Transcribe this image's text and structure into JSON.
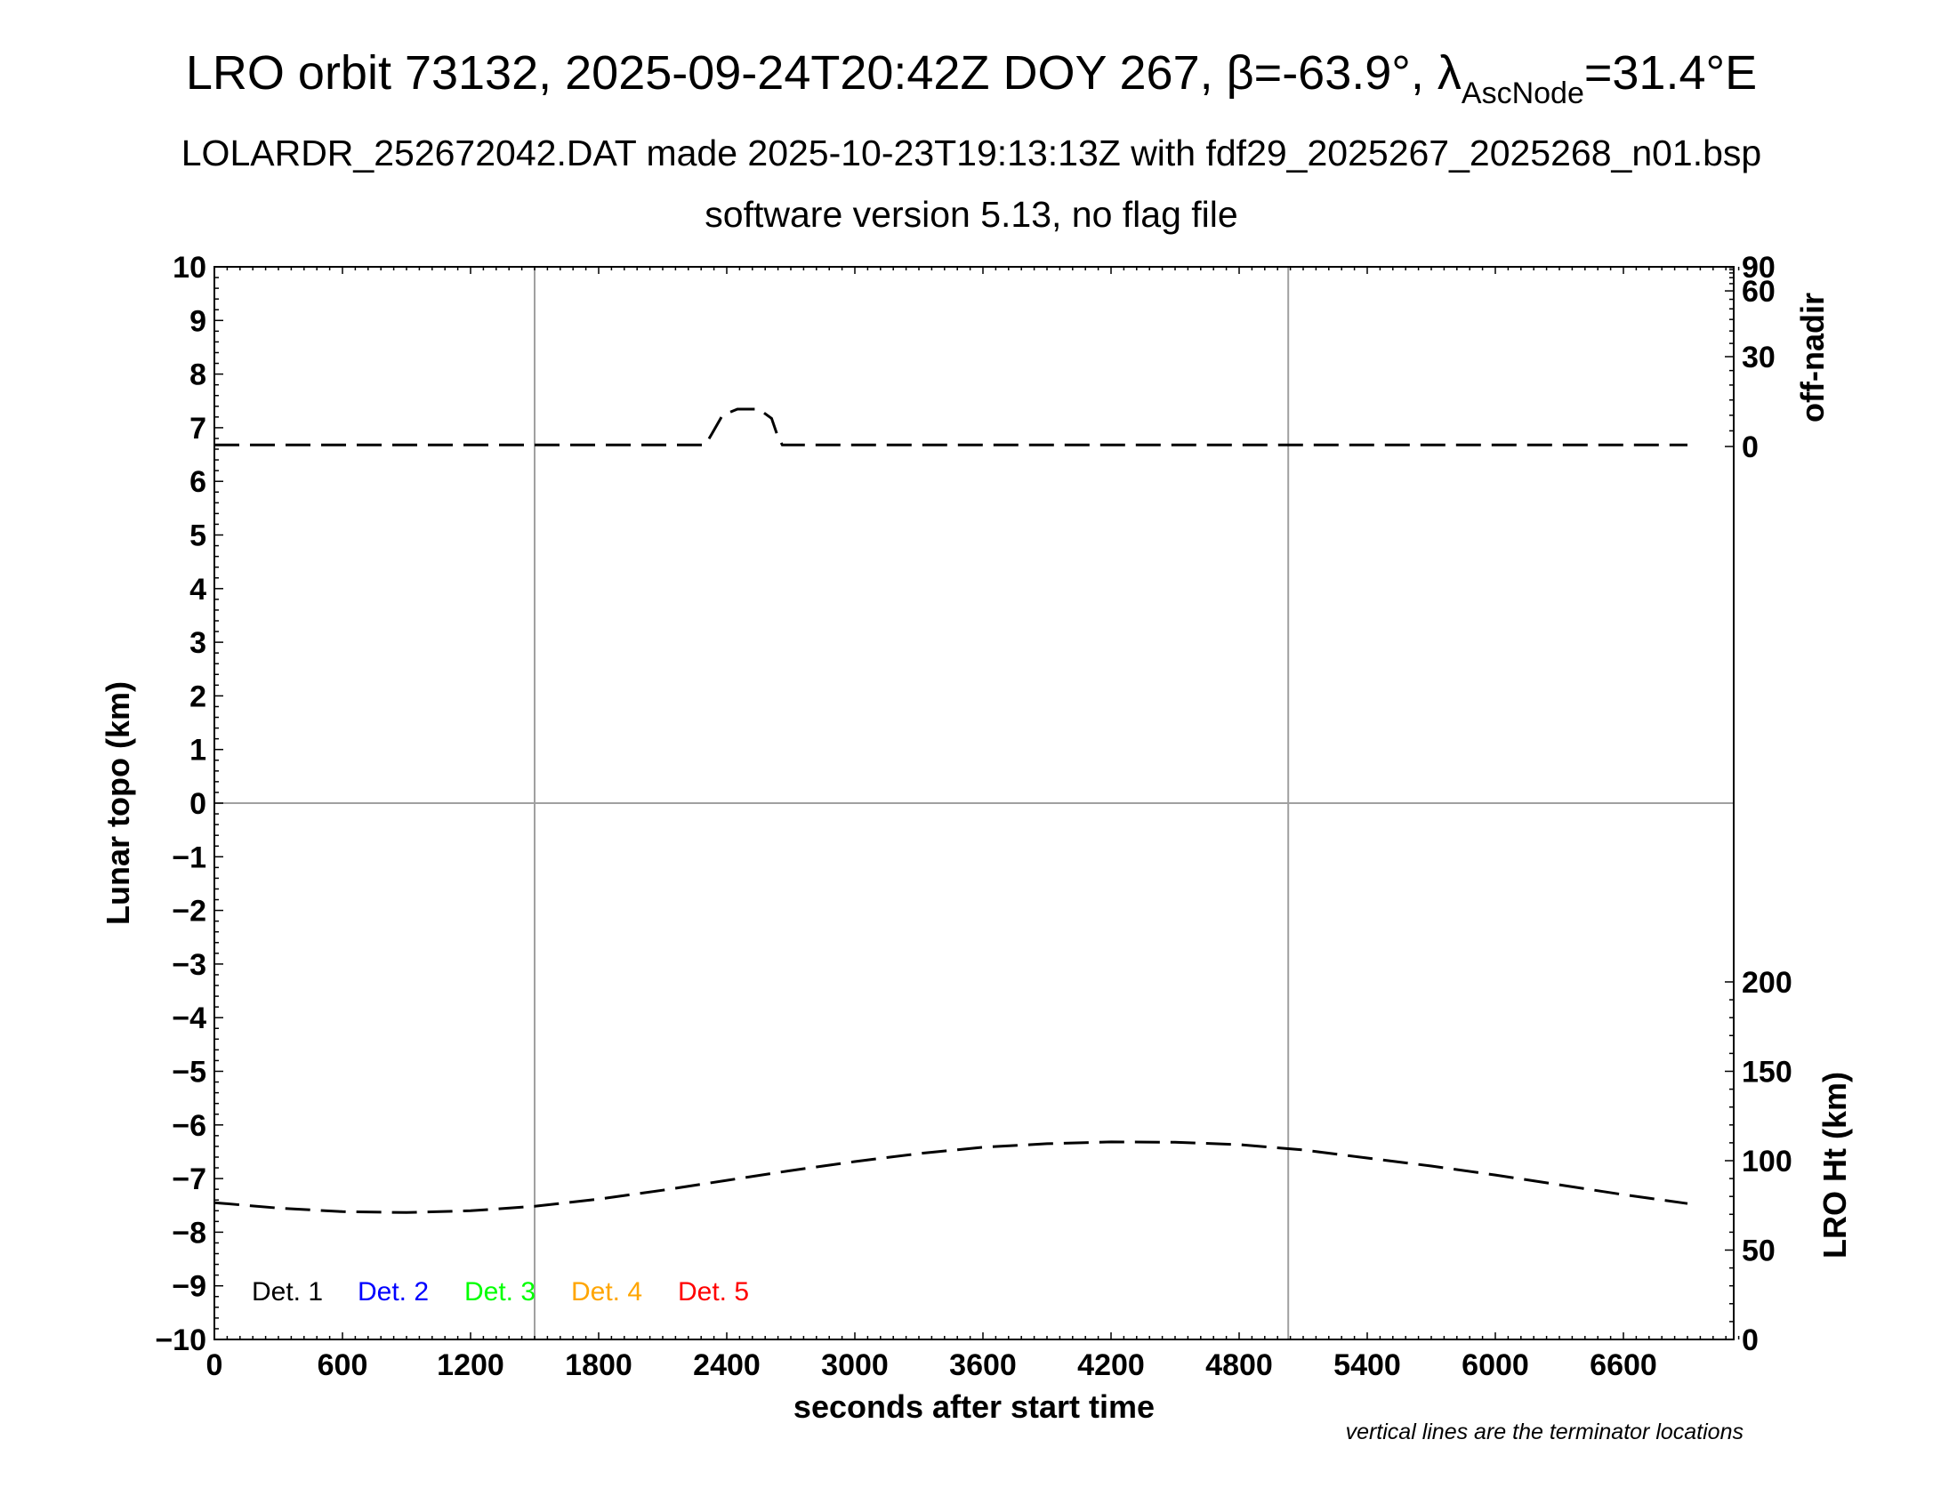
{
  "header": {
    "title_prefix": "LRO orbit 73132, 2025-09-24T20:42Z DOY 267, β=-63.9°, λ",
    "title_sub": "AscNode",
    "title_suffix": "=31.4°E",
    "subtitle": "LOLARDR_252672042.DAT made 2025-10-23T19:13:13Z with fdf29_2025267_2025268_n01.bsp",
    "subtitle2": "software version 5.13, no flag file"
  },
  "note": "vertical lines are the terminator locations",
  "chart_data": {
    "type": "line",
    "xlabel": "seconds after start time",
    "ylabel": "Lunar topo (km)",
    "y2label_top": "off-nadir",
    "y2label_bottom": "LRO Ht (km)",
    "xlim": [
      0,
      7140
    ],
    "ylim": [
      -10,
      10
    ],
    "x_ticks": [
      "0",
      "600",
      "1200",
      "1800",
      "2400",
      "3000",
      "3600",
      "4200",
      "4800",
      "5400",
      "6000",
      "6600"
    ],
    "y_ticks": [
      "10",
      "9",
      "8",
      "7",
      "6",
      "5",
      "4",
      "3",
      "2",
      "1",
      "0",
      "−1",
      "−2",
      "−3",
      "−4",
      "−5",
      "−6",
      "−7",
      "−8",
      "−9",
      "−10"
    ],
    "offnadir_ticks": [
      "90",
      "60",
      "30",
      "0"
    ],
    "height_ticks": [
      "200",
      "150",
      "100",
      "50",
      "0"
    ],
    "grid": false,
    "terminators_x": [
      1500,
      5030
    ],
    "legend": [
      {
        "label": "Det. 1",
        "color": "#000000"
      },
      {
        "label": "Det. 2",
        "color": "#0000ff"
      },
      {
        "label": "Det. 3",
        "color": "#00ff00"
      },
      {
        "label": "Det. 4",
        "color": "#ffa500"
      },
      {
        "label": "Det. 5",
        "color": "#ff0000"
      }
    ],
    "series": [
      {
        "name": "off-nadir",
        "units": "deg",
        "x": [
          0,
          600,
          1200,
          1800,
          2300,
          2330,
          2380,
          2450,
          2550,
          2610,
          2640,
          2660,
          2700,
          3000,
          3600,
          4200,
          4800,
          5400,
          6000,
          6600,
          6900
        ],
        "y": [
          0.5,
          0.5,
          0.5,
          0.5,
          0.5,
          4,
          10,
          12,
          12,
          9,
          3,
          0.5,
          0.5,
          0.5,
          0.5,
          0.5,
          0.5,
          0.5,
          0.5,
          0.5,
          0.5
        ]
      },
      {
        "name": "LRO Ht",
        "units": "km",
        "x": [
          0,
          300,
          600,
          900,
          1200,
          1500,
          1800,
          2100,
          2400,
          2700,
          3000,
          3300,
          3600,
          3900,
          4200,
          4500,
          4800,
          5100,
          5400,
          5700,
          6000,
          6300,
          6600,
          6900
        ],
        "y": [
          76.5,
          73.5,
          71.5,
          71,
          72,
          74.5,
          78.5,
          83.5,
          89,
          94.5,
          99.5,
          104,
          107.5,
          109.5,
          110.5,
          110.3,
          109,
          106,
          101.5,
          97,
          92,
          86.5,
          81,
          76
        ]
      }
    ]
  }
}
